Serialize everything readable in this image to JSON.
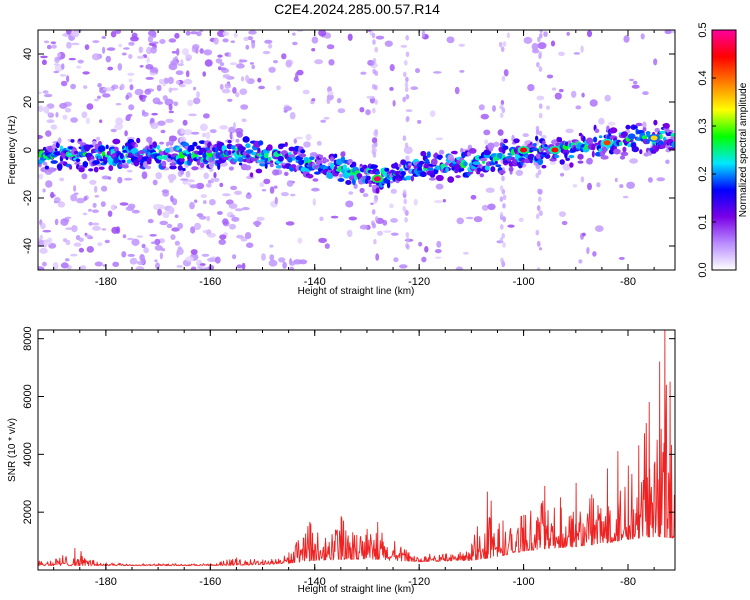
{
  "title": "C2E4.2024.285.00.57.R14",
  "chart_data": [
    {
      "type": "heatmap",
      "xlabel": "Height of straight line (km)",
      "ylabel": "Frequency (Hz)",
      "xlim": [
        -193,
        -71
      ],
      "ylim": [
        -50,
        50
      ],
      "xticks": [
        -180,
        -160,
        -140,
        -120,
        -100,
        -80
      ],
      "yticks": [
        -40,
        -20,
        0,
        20,
        40
      ],
      "colorbar": {
        "label": "Normalized spectral amplitude",
        "range": [
          0.0,
          0.5
        ],
        "ticks": [
          "0.0",
          "0.1",
          "0.2",
          "0.3",
          "0.4",
          "0.5"
        ],
        "colors": [
          "#ffffff",
          "#b98cff",
          "#7a00e6",
          "#0000ff",
          "#00e8ff",
          "#00ff00",
          "#ffff00",
          "#ff8000",
          "#ff0000",
          "#ff00a0"
        ]
      },
      "trend": {
        "x": [
          -193,
          -150,
          -140,
          -128,
          -120,
          -110,
          -100,
          -90,
          -80,
          -71
        ],
        "y": [
          -2,
          -2,
          -6,
          -11,
          -7,
          -6,
          -1,
          1,
          4,
          5
        ]
      },
      "peaks": [
        {
          "x": -128,
          "y": -12,
          "value": 0.48
        },
        {
          "x": -100,
          "y": 0,
          "value": 0.45
        },
        {
          "x": -94,
          "y": 0,
          "value": 0.44
        },
        {
          "x": -84,
          "y": 3,
          "value": 0.42
        },
        {
          "x": -75,
          "y": 5,
          "value": 0.35
        }
      ]
    },
    {
      "type": "line",
      "xlabel": "Height of straight line (km)",
      "ylabel": "SNR (10 * v/v)",
      "xlim": [
        -193,
        -71
      ],
      "ylim": [
        0,
        8300
      ],
      "xticks": [
        -180,
        -160,
        -140,
        -120,
        -100,
        -80
      ],
      "yticks": [
        2000,
        4000,
        6000,
        8000
      ],
      "color": "#ee2222",
      "envelope": {
        "x": [
          -193,
          -186,
          -180,
          -170,
          -160,
          -155,
          -150,
          -145,
          -141,
          -138,
          -135,
          -132,
          -128,
          -122,
          -115,
          -110,
          -107,
          -104,
          -100,
          -96,
          -93,
          -90,
          -87,
          -84,
          -82,
          -80,
          -78,
          -76,
          -74,
          -73,
          -72,
          -71
        ],
        "y": [
          300,
          750,
          250,
          220,
          220,
          420,
          350,
          600,
          1650,
          1100,
          1850,
          1200,
          1650,
          600,
          550,
          900,
          2700,
          1700,
          1900,
          2900,
          2500,
          3000,
          2600,
          3500,
          4100,
          3600,
          4300,
          5800,
          7200,
          8300,
          6500,
          3000
        ]
      },
      "baseline": {
        "x": [
          -193,
          -160,
          -150,
          -145,
          -140,
          -130,
          -120,
          -110,
          -105,
          -100,
          -95,
          -90,
          -85,
          -80,
          -75,
          -71
        ],
        "y": [
          150,
          150,
          180,
          230,
          330,
          380,
          280,
          330,
          450,
          650,
          750,
          800,
          900,
          1050,
          1150,
          1100
        ]
      }
    }
  ]
}
